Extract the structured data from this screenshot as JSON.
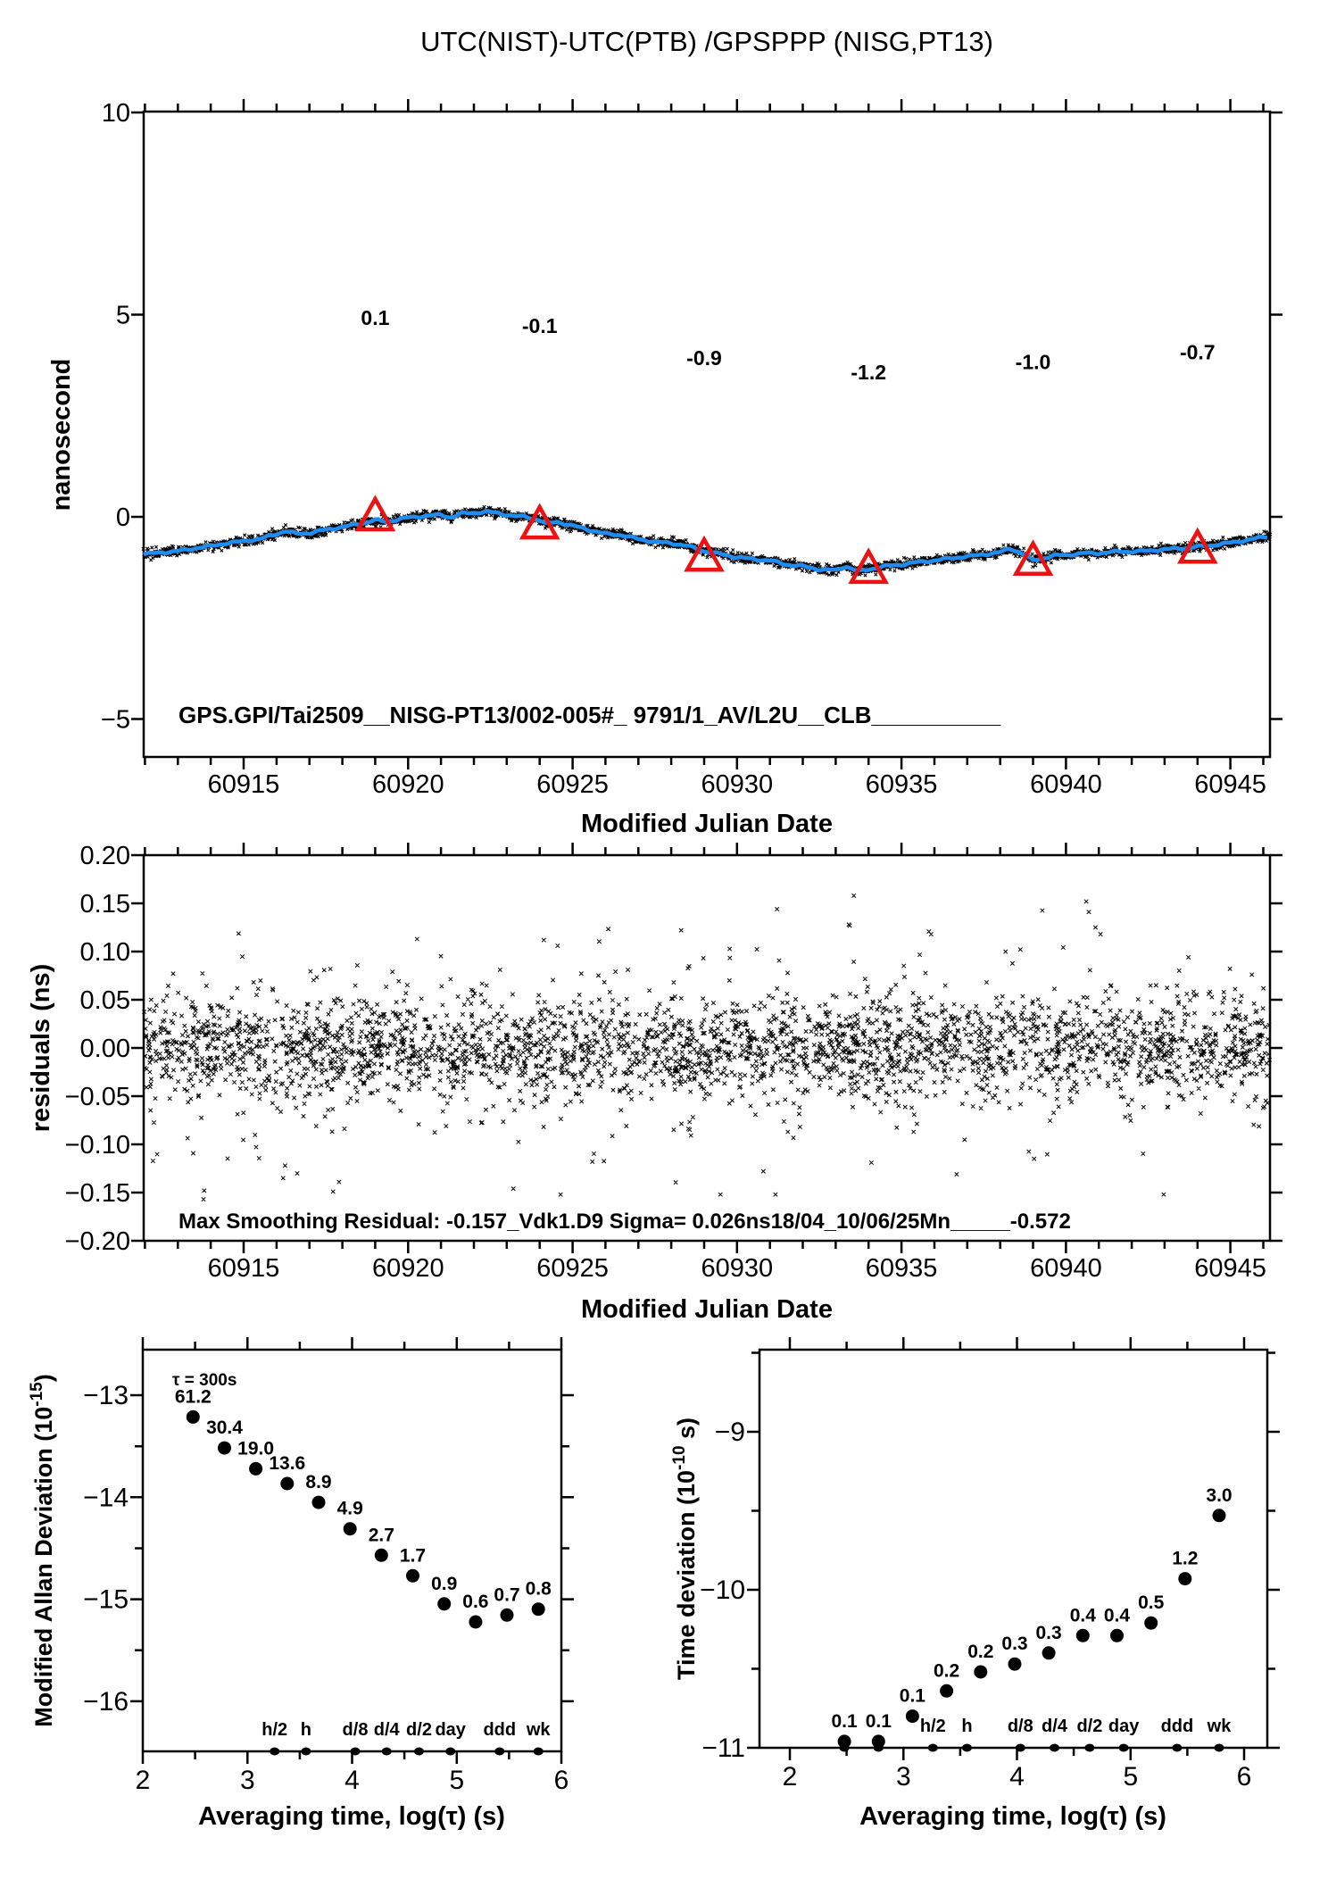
{
  "colors": {
    "red": "#ee1111",
    "blue": "#1e8cf0",
    "black": "#000000",
    "background": "#ffffff"
  },
  "figure": {
    "title": "UTC(NIST)-UTC(PTB)  /GPSPPP  (NISG,PT13)"
  },
  "chart_data": [
    {
      "type": "line",
      "title": "UTC(NIST)-UTC(PTB)  /GPSPPP  (NISG,PT13)",
      "xlabel": "Modified Julian Date",
      "ylabel": "nanosecond",
      "xlim": [
        60911.96,
        60946.2
      ],
      "ylim": [
        -5.94,
        10
      ],
      "xticks": {
        "values": [
          60915,
          60920,
          60925,
          60930,
          60935,
          60940,
          60945
        ],
        "labels": [
          "60915",
          "60920",
          "60925",
          "60930",
          "60935",
          "60940",
          "60945"
        ]
      },
      "yticks": {
        "values": [
          10,
          5,
          0,
          -5
        ],
        "labels": [
          "10",
          "5",
          "0",
          "−5"
        ]
      },
      "xminor_step": 1,
      "grid": false,
      "inplot_text": "GPS.GPI/Tai2509__NISG-PT13/002-005#_  9791/1_AV/L2U__CLB__________",
      "series": [
        {
          "name": "smoothed-phase-difference",
          "color": "#1e8cf0",
          "points": [
            [
              60912.0,
              -0.92
            ],
            [
              60912.5,
              -0.88
            ],
            [
              60913.0,
              -0.85
            ],
            [
              60913.5,
              -0.78
            ],
            [
              60914.0,
              -0.72
            ],
            [
              60914.5,
              -0.65
            ],
            [
              60915.0,
              -0.6
            ],
            [
              60915.5,
              -0.55
            ],
            [
              60916.0,
              -0.42
            ],
            [
              60916.3,
              -0.35
            ],
            [
              60916.6,
              -0.42
            ],
            [
              60917.0,
              -0.4
            ],
            [
              60917.5,
              -0.32
            ],
            [
              60918.0,
              -0.25
            ],
            [
              60918.5,
              -0.18
            ],
            [
              60919.0,
              -0.08
            ],
            [
              60919.3,
              -0.12
            ],
            [
              60919.6,
              -0.08
            ],
            [
              60920.0,
              -0.02
            ],
            [
              60920.5,
              0.02
            ],
            [
              60921.0,
              0.05
            ],
            [
              60921.3,
              -0.02
            ],
            [
              60921.6,
              0.08
            ],
            [
              60922.0,
              0.1
            ],
            [
              60922.4,
              0.13
            ],
            [
              60922.8,
              0.08
            ],
            [
              60923.2,
              0.02
            ],
            [
              60923.6,
              0.0
            ],
            [
              60924.0,
              -0.08
            ],
            [
              60924.2,
              -0.18
            ],
            [
              60924.5,
              -0.12
            ],
            [
              60925.0,
              -0.22
            ],
            [
              60925.5,
              -0.32
            ],
            [
              60926.0,
              -0.42
            ],
            [
              60926.5,
              -0.45
            ],
            [
              60927.0,
              -0.55
            ],
            [
              60927.5,
              -0.62
            ],
            [
              60928.0,
              -0.65
            ],
            [
              60928.5,
              -0.72
            ],
            [
              60929.0,
              -0.85
            ],
            [
              60929.5,
              -0.92
            ],
            [
              60930.0,
              -1.0
            ],
            [
              60930.5,
              -1.05
            ],
            [
              60931.0,
              -1.08
            ],
            [
              60931.5,
              -1.18
            ],
            [
              60932.0,
              -1.22
            ],
            [
              60932.5,
              -1.3
            ],
            [
              60933.0,
              -1.32
            ],
            [
              60933.3,
              -1.22
            ],
            [
              60933.7,
              -1.35
            ],
            [
              60934.0,
              -1.3
            ],
            [
              60934.5,
              -1.22
            ],
            [
              60935.0,
              -1.18
            ],
            [
              60935.5,
              -1.12
            ],
            [
              60936.0,
              -1.08
            ],
            [
              60936.5,
              -1.02
            ],
            [
              60937.0,
              -0.98
            ],
            [
              60937.5,
              -0.93
            ],
            [
              60938.0,
              -0.88
            ],
            [
              60938.3,
              -0.78
            ],
            [
              60938.6,
              -0.88
            ],
            [
              60939.0,
              -1.08
            ],
            [
              60939.3,
              -1.02
            ],
            [
              60939.7,
              -0.95
            ],
            [
              60940.0,
              -0.95
            ],
            [
              60940.5,
              -0.9
            ],
            [
              60941.0,
              -0.9
            ],
            [
              60941.5,
              -0.86
            ],
            [
              60942.0,
              -0.86
            ],
            [
              60942.5,
              -0.84
            ],
            [
              60943.0,
              -0.8
            ],
            [
              60943.5,
              -0.78
            ],
            [
              60944.0,
              -0.74
            ],
            [
              60944.5,
              -0.7
            ],
            [
              60945.0,
              -0.64
            ],
            [
              60945.5,
              -0.58
            ],
            [
              60946.0,
              -0.5
            ],
            [
              60946.2,
              -0.48
            ]
          ]
        }
      ],
      "noise_band": {
        "marker": "x",
        "color": "#000000",
        "n": 3000,
        "seed": 7,
        "sigma_ns": 0.055
      },
      "calibration_markers": {
        "marker": "open-triangle",
        "color": "#ee1111",
        "points": [
          {
            "mjd": 60919,
            "y": 0.0,
            "label": "0.1",
            "label_y": 4.75
          },
          {
            "mjd": 60924,
            "y": -0.2,
            "label": "-0.1",
            "label_y": 4.55
          },
          {
            "mjd": 60929,
            "y": -1.0,
            "label": "-0.9",
            "label_y": 3.75
          },
          {
            "mjd": 60934,
            "y": -1.3,
            "label": "-1.2",
            "label_y": 3.4
          },
          {
            "mjd": 60939,
            "y": -1.1,
            "label": "-1.0",
            "label_y": 3.65
          },
          {
            "mjd": 60944,
            "y": -0.8,
            "label": "-0.7",
            "label_y": 3.9
          }
        ]
      }
    },
    {
      "type": "scatter",
      "xlabel": "Modified Julian Date",
      "ylabel": "residuals (ns)",
      "xlim": [
        60911.96,
        60946.2
      ],
      "ylim": [
        -0.2,
        0.2
      ],
      "xticks": {
        "values": [
          60915,
          60920,
          60925,
          60930,
          60935,
          60940,
          60945
        ],
        "labels": [
          "60915",
          "60920",
          "60925",
          "60930",
          "60935",
          "60940",
          "60945"
        ]
      },
      "yticks": {
        "values": [
          0.2,
          0.15,
          0.1,
          0.05,
          0.0,
          -0.05,
          -0.1,
          -0.15,
          -0.2
        ],
        "labels": [
          "0.20",
          "0.15",
          "0.10",
          "0.05",
          "0.00",
          "−0.05",
          "−0.10",
          "−0.15",
          "−0.20"
        ]
      },
      "xminor_step": 1,
      "marker": "x",
      "scatter_gen": {
        "n": 3200,
        "seed": 42,
        "sigma_core": 0.024,
        "sigma_mid": 0.05,
        "sigma_tail": 0.075,
        "clamp": [
          -0.152,
          0.158
        ]
      },
      "outliers": [
        [
          60913.78,
          -0.157
        ],
        [
          60913.8,
          -0.148
        ],
        [
          60916.2,
          -0.135
        ],
        [
          60916.26,
          -0.122
        ],
        [
          60917.9,
          -0.139
        ],
        [
          60933.55,
          0.158
        ],
        [
          60933.4,
          0.128
        ],
        [
          60930.8,
          -0.128
        ],
        [
          60923.2,
          -0.146
        ],
        [
          60940.9,
          0.125
        ],
        [
          60941.05,
          0.118
        ],
        [
          60935.9,
          0.118
        ],
        [
          60925.6,
          -0.118
        ],
        [
          60928.3,
          0.122
        ]
      ],
      "annotation": "Max Smoothing Residual: -0.157_Vdk1.D9  Sigma= 0.026ns18/04_10/06/25Mn_____-0.572"
    },
    {
      "type": "scatter",
      "xlabel": "Averaging time, log(τ) (s)",
      "ylabel_parts": [
        "Modified Allan Deviation (10",
        "-15",
        ")"
      ],
      "xlim": [
        2,
        6
      ],
      "ylim": [
        -16.49,
        -12.55
      ],
      "xticks": {
        "values": [
          2,
          3,
          4,
          5,
          6
        ],
        "labels": [
          "2",
          "3",
          "4",
          "5",
          "6"
        ]
      },
      "yticks": {
        "values": [
          -13,
          -14,
          -15,
          -16
        ],
        "labels": [
          "−13",
          "−14",
          "−15",
          "−16"
        ]
      },
      "xminor_step": 0.5,
      "yminor_step": 0.5,
      "note": "τ = 300s",
      "x_log_tau": [
        2.48,
        2.78,
        3.08,
        3.38,
        3.68,
        3.98,
        4.28,
        4.58,
        4.88,
        5.18,
        5.48,
        5.78
      ],
      "values_1e15": [
        61.2,
        30.4,
        19.0,
        13.6,
        8.9,
        4.9,
        2.7,
        1.7,
        0.9,
        0.6,
        0.7,
        0.8
      ],
      "values_labels": [
        "61.2",
        "30.4",
        "19.0",
        "13.6",
        "8.9",
        "4.9",
        "2.7",
        "1.7",
        "0.9",
        "0.6",
        "0.7",
        "0.8"
      ],
      "tau_ladder": {
        "labels": [
          "h/2",
          "h",
          "d/8",
          "d/4",
          "d/2",
          "day",
          "ddd",
          "wk"
        ],
        "x": [
          3.26,
          3.56,
          4.03,
          4.33,
          4.64,
          4.94,
          5.41,
          5.78
        ],
        "extra_dots_x": []
      }
    },
    {
      "type": "scatter",
      "xlabel": "Averaging time, log(τ) (s)",
      "ylabel_parts": [
        "Time deviation (10",
        "-10",
        " s)"
      ],
      "xlim": [
        1.73,
        6.2
      ],
      "ylim": [
        -11,
        -8.48
      ],
      "xticks": {
        "values": [
          2,
          3,
          4,
          5,
          6
        ],
        "labels": [
          "2",
          "3",
          "4",
          "5",
          "6"
        ]
      },
      "yticks": {
        "values": [
          -9,
          -10,
          -11
        ],
        "labels": [
          "−9",
          "−10",
          "−11"
        ]
      },
      "xminor_step": 0.5,
      "yminor_step": 0.5,
      "x_log_tau": [
        2.48,
        2.78,
        3.08,
        3.38,
        3.68,
        3.98,
        4.28,
        4.58,
        4.88,
        5.18,
        5.48,
        5.78
      ],
      "y_log": [
        -10.96,
        -10.96,
        -10.8,
        -10.64,
        -10.52,
        -10.47,
        -10.4,
        -10.29,
        -10.29,
        -10.21,
        -9.93,
        -9.53
      ],
      "values_labels": [
        "0.1",
        "0.1",
        "0.1",
        "0.2",
        "0.2",
        "0.3",
        "0.3",
        "0.4",
        "0.4",
        "0.5",
        "1.2",
        "3.0"
      ],
      "tau_ladder": {
        "labels": [
          "h/2",
          "h",
          "d/8",
          "d/4",
          "d/2",
          "day",
          "ddd",
          "wk"
        ],
        "x": [
          3.26,
          3.56,
          4.03,
          4.33,
          4.64,
          4.94,
          5.41,
          5.78
        ],
        "extra_dots_x": [
          2.48,
          2.78
        ]
      }
    }
  ]
}
